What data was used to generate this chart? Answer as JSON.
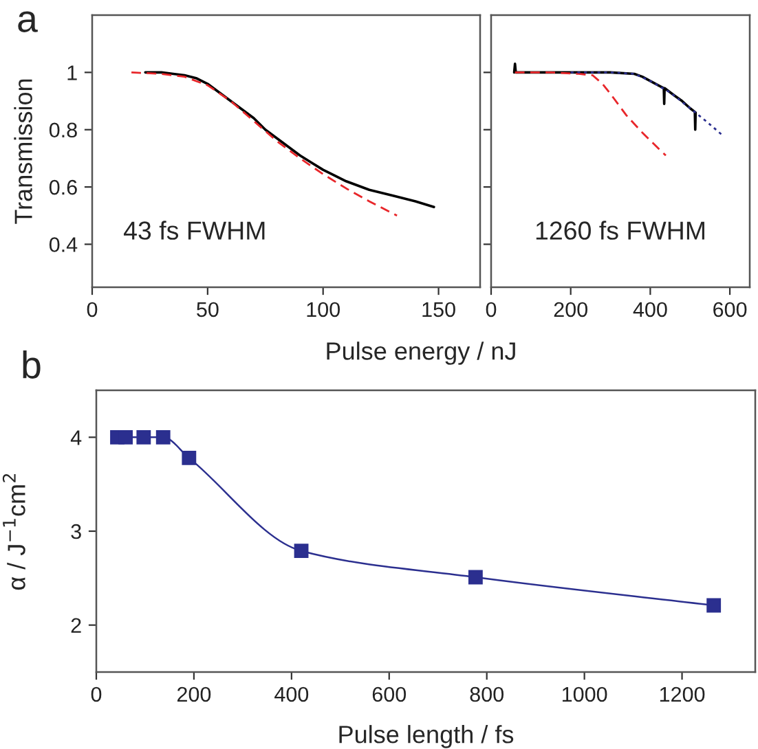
{
  "chart_data": [
    {
      "type": "line",
      "ylabel": "Transmission",
      "xlabel": "Pulse energy / nJ",
      "xlim": [
        0,
        168
      ],
      "xticks": [
        0,
        50,
        100,
        150
      ],
      "ylim": [
        0.25,
        1.2
      ],
      "yticks": [
        0.4,
        0.6,
        0.8,
        1
      ],
      "grid": false,
      "marker": "none",
      "annotations": [
        "a",
        "43 fs FWHM"
      ],
      "series": [
        {
          "color": "#000000",
          "line_style": "solid",
          "x": [
            23,
            30,
            40,
            45,
            50,
            55,
            60,
            65,
            70,
            75,
            80,
            85,
            90,
            95,
            100,
            110,
            120,
            130,
            140,
            148
          ],
          "values": [
            1.0,
            1.0,
            0.99,
            0.98,
            0.96,
            0.93,
            0.9,
            0.87,
            0.84,
            0.8,
            0.77,
            0.74,
            0.71,
            0.685,
            0.66,
            0.62,
            0.59,
            0.57,
            0.55,
            0.53
          ]
        },
        {
          "color": "#e8262a",
          "line_style": "dashed",
          "x": [
            17,
            30,
            40,
            50,
            60,
            70,
            80,
            90,
            100,
            110,
            120,
            132
          ],
          "values": [
            1.0,
            0.995,
            0.985,
            0.955,
            0.9,
            0.83,
            0.76,
            0.7,
            0.645,
            0.595,
            0.55,
            0.5
          ]
        }
      ]
    },
    {
      "type": "line",
      "xlim": [
        0,
        650
      ],
      "xticks": [
        0,
        200,
        400,
        600
      ],
      "ylim": [
        0.25,
        1.2
      ],
      "yticks": [
        0.4,
        0.6,
        0.8,
        1
      ],
      "tick_labels": "x",
      "grid": false,
      "marker": "none",
      "annotations": [
        "1260 fs FWHM"
      ],
      "series": [
        {
          "color": "#000000",
          "line_style": "solid",
          "x": [
            58,
            60,
            62,
            100,
            200,
            300,
            360,
            380,
            400,
            420,
            434,
            435,
            436,
            460,
            480,
            500,
            512,
            513,
            514
          ],
          "values": [
            1.0,
            1.03,
            1.0,
            1.0,
            1.0,
            1.0,
            0.995,
            0.985,
            0.97,
            0.955,
            0.945,
            0.89,
            0.945,
            0.92,
            0.9,
            0.875,
            0.862,
            0.8,
            0.86
          ]
        },
        {
          "color": "#e8262a",
          "line_style": "dashed",
          "x": [
            60,
            150,
            220,
            255,
            280,
            300,
            340,
            380,
            420,
            439
          ],
          "values": [
            1.0,
            1.0,
            0.995,
            0.99,
            0.96,
            0.925,
            0.85,
            0.79,
            0.735,
            0.71
          ]
        },
        {
          "color": "#2b2f8f",
          "line_style": "dotted",
          "x": [
            200,
            300,
            360,
            400,
            450,
            500,
            540,
            582
          ],
          "values": [
            1.0,
            1.0,
            0.995,
            0.97,
            0.93,
            0.875,
            0.83,
            0.78
          ]
        }
      ]
    },
    {
      "type": "line",
      "xlabel": "Pulse length / fs",
      "ylabel": "α / J$^{−1}$cm$^{2}$",
      "xlim": [
        0,
        1350
      ],
      "xticks": [
        0,
        200,
        400,
        600,
        800,
        1000,
        1200
      ],
      "ylim": [
        1.5,
        4.5
      ],
      "yticks": [
        2,
        3,
        4
      ],
      "grid": false,
      "marker": "square",
      "annotations": [
        "b"
      ],
      "series": [
        {
          "color": "#2b2f8f",
          "line_style": "solid",
          "x": [
            43,
            60,
            97,
            137,
            190,
            420,
            777,
            1265
          ],
          "values": [
            4.0,
            4.0,
            4.0,
            4.0,
            3.78,
            2.79,
            2.51,
            2.21
          ]
        }
      ]
    }
  ]
}
